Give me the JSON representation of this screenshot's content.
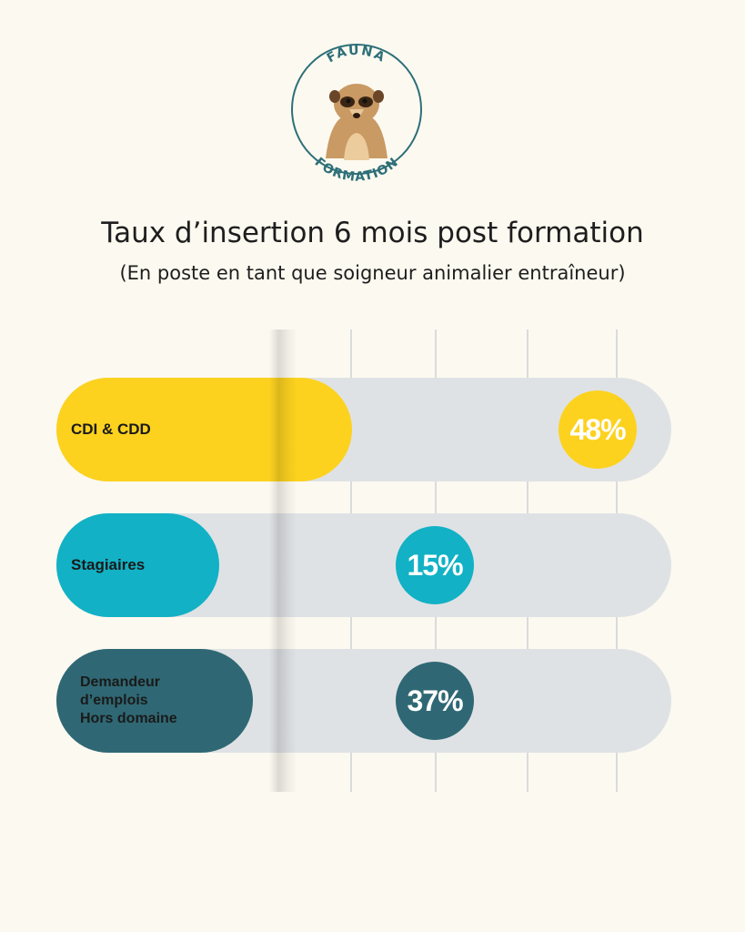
{
  "brand": {
    "name_top": "FAUNA",
    "name_bottom": "FORMATION",
    "color": "#2d6f78",
    "icon": "meerkat-icon"
  },
  "title": "Taux d’insertion 6 mois post formation",
  "subtitle": "(En poste en tant que soigneur animalier entraîneur)",
  "chart_data": {
    "type": "bar",
    "orientation": "horizontal",
    "categories": [
      "CDI & CDD",
      "Stagiaires",
      "Demandeur\nd’emplois\nHors domaine"
    ],
    "values": [
      48,
      15,
      37
    ],
    "value_labels": [
      "48%",
      "15%",
      "37%"
    ],
    "max": 100,
    "colors": [
      "#fcd21f",
      "#12b1c5",
      "#2f6874"
    ],
    "track_color": "#dfe2e5",
    "grid": true
  }
}
